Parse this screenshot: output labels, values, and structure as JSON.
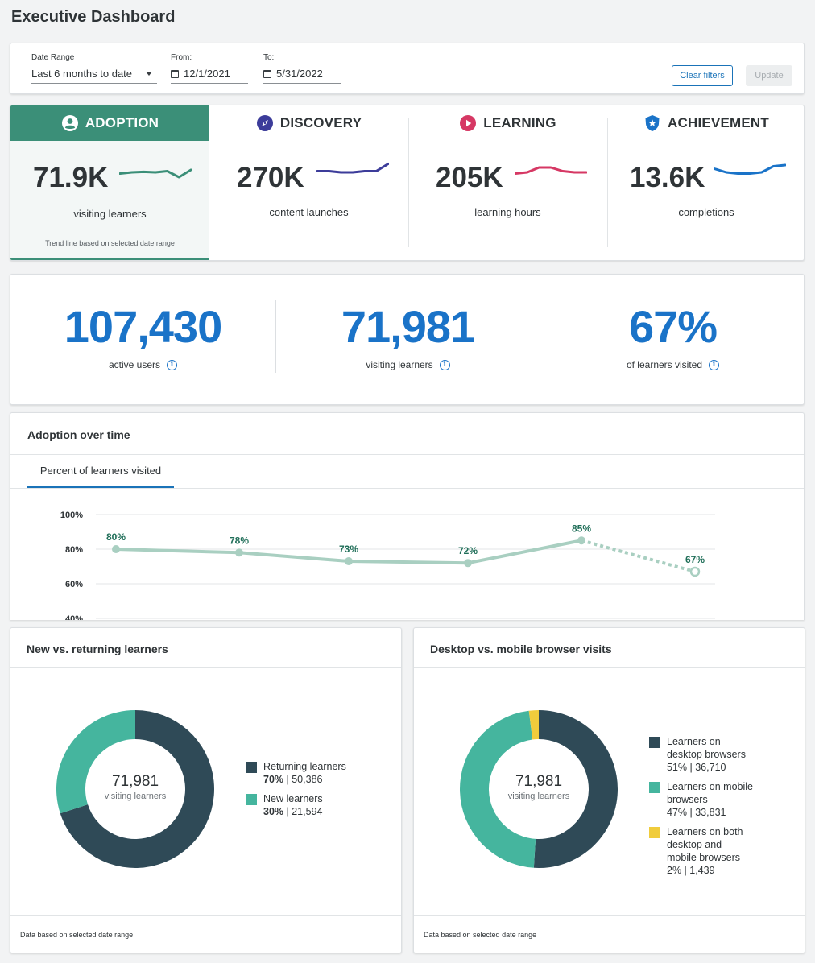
{
  "page": {
    "title": "Executive Dashboard"
  },
  "filters": {
    "date_range_label": "Date Range",
    "date_range_value": "Last 6 months to date",
    "from_label": "From:",
    "from_value": "12/1/2021",
    "to_label": "To:",
    "to_value": "5/31/2022",
    "clear_label": "Clear filters",
    "update_label": "Update"
  },
  "metrics": [
    {
      "title": "ADOPTION",
      "icon": "user-circle-icon",
      "value": "71.9K",
      "label": "visiting learners",
      "note": "Trend line based on selected date range",
      "color": "#3b8f78",
      "spark": [
        0.55,
        0.5,
        0.48,
        0.5,
        0.45,
        0.7,
        0.4
      ]
    },
    {
      "title": "DISCOVERY",
      "icon": "compass-icon",
      "value": "270K",
      "label": "content launches",
      "color": "#3c3c9a",
      "spark": [
        0.45,
        0.45,
        0.5,
        0.5,
        0.45,
        0.45,
        0.15
      ]
    },
    {
      "title": "LEARNING",
      "icon": "play-icon",
      "value": "205K",
      "label": "learning hours",
      "color": "#d63864",
      "spark": [
        0.55,
        0.5,
        0.3,
        0.3,
        0.45,
        0.5,
        0.5
      ]
    },
    {
      "title": "ACHIEVEMENT",
      "icon": "star-badge-icon",
      "value": "13.6K",
      "label": "completions",
      "color": "#1a73c8",
      "spark": [
        0.35,
        0.5,
        0.55,
        0.55,
        0.5,
        0.25,
        0.2
      ]
    }
  ],
  "stats": [
    {
      "value": "107,430",
      "label": "active users"
    },
    {
      "value": "71,981",
      "label": "visiting learners"
    },
    {
      "value": "67%",
      "label": "of learners visited"
    }
  ],
  "adoption": {
    "title": "Adoption over time",
    "tab_label": "Percent of learners visited"
  },
  "chart_data": {
    "type": "line",
    "y_ticks": [
      "100%",
      "80%",
      "60%",
      "40%"
    ],
    "ylim": [
      40,
      100
    ],
    "values": [
      80,
      78,
      73,
      72,
      85,
      67
    ],
    "value_labels": [
      "80%",
      "78%",
      "73%",
      "72%",
      "85%",
      "67%"
    ],
    "projected_last": true,
    "color": "#a9cfc1",
    "label_color": "#1f6e58"
  },
  "new_vs_returning": {
    "title": "New vs. returning learners",
    "center_value": "71,981",
    "center_label": "visiting learners",
    "footer": "Data based on selected date range",
    "slices": [
      {
        "name": "Returning learners",
        "pct": "70%",
        "count": "50,386",
        "value": 70,
        "color": "#2f4a57"
      },
      {
        "name": "New learners",
        "pct": "30%",
        "count": "21,594",
        "value": 30,
        "color": "#45b59e"
      }
    ]
  },
  "desktop_vs_mobile": {
    "title": "Desktop vs. mobile browser visits",
    "center_value": "71,981",
    "center_label": "visiting learners",
    "footer": "Data based on selected date range",
    "slices": [
      {
        "name": "Learners on desktop browsers",
        "pct": "51%",
        "count": "36,710",
        "value": 51,
        "color": "#2f4a57"
      },
      {
        "name": "Learners on mobile browsers",
        "pct": "47%",
        "count": "33,831",
        "value": 47,
        "color": "#45b59e"
      },
      {
        "name": "Learners on both desktop and mobile browsers",
        "pct": "2%",
        "count": "1,439",
        "value": 2,
        "color": "#f0cc3c"
      }
    ]
  }
}
